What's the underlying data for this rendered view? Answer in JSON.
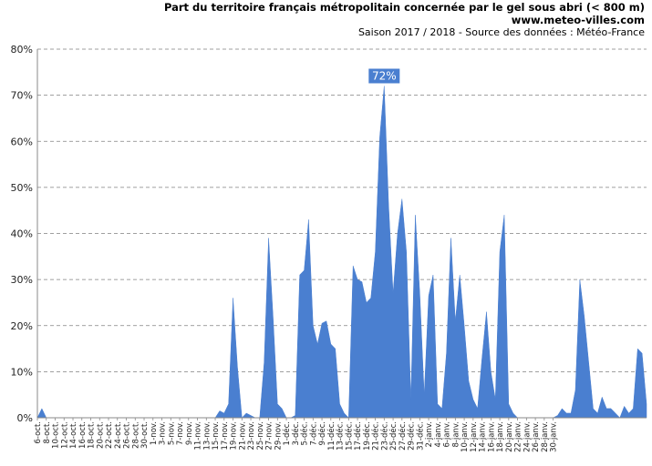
{
  "header": {
    "title": "Part du territoire français métropolitain concernée par le gel sous abri (< 800 m)",
    "site": "www.meteo-villes.com",
    "subtitle": "Saison 2017 / 2018 - Source des données : Météo-France"
  },
  "colors": {
    "area": "#4a7fd0",
    "grid": "#808080",
    "axis": "#888888",
    "label_bg": "#4a7fd0"
  },
  "chart_data": {
    "type": "area",
    "title": "Part du territoire français métropolitain concernée par le gel sous abri (< 800 m)",
    "subtitle": "Saison 2017 / 2018 - Source des données : Météo-France",
    "xlabel": "",
    "ylabel": "",
    "ylim": [
      0,
      80
    ],
    "y_unit": "%",
    "yticks": [
      "0%",
      "10%",
      "20%",
      "30%",
      "40%",
      "50%",
      "60%",
      "70%",
      "80%"
    ],
    "grid": true,
    "max_label": "72%",
    "x_tick_labels": [
      "6-oct.",
      "8-oct.",
      "10-oct.",
      "12-oct.",
      "14-oct.",
      "16-oct.",
      "18-oct.",
      "20-oct.",
      "22-oct.",
      "24-oct.",
      "26-oct.",
      "28-oct.",
      "30-oct.",
      "1-nov.",
      "3-nov.",
      "5-nov.",
      "7-nov.",
      "9-nov.",
      "11-nov.",
      "13-nov.",
      "15-nov.",
      "17-nov.",
      "19-nov.",
      "21-nov.",
      "23-nov.",
      "25-nov.",
      "27-nov.",
      "29-nov.",
      "1-déc.",
      "3-déc.",
      "5-déc.",
      "7-déc.",
      "9-déc.",
      "11-déc.",
      "13-déc.",
      "15-déc.",
      "17-déc.",
      "19-déc.",
      "21-déc.",
      "23-déc.",
      "25-déc.",
      "27-déc.",
      "29-déc.",
      "31-déc.",
      "2-janv.",
      "4-janv.",
      "6-janv.",
      "8-janv.",
      "10-janv.",
      "12-janv.",
      "14-janv.",
      "16-janv.",
      "18-janv.",
      "20-janv.",
      "22-janv.",
      "24-janv.",
      "26-janv.",
      "28-janv.",
      "30-janv."
    ],
    "start_date": "2017-10-06",
    "values": [
      0,
      2,
      0,
      0,
      0,
      0,
      0,
      0,
      0,
      0,
      0,
      0,
      0,
      0,
      0,
      0,
      0,
      0,
      0,
      0,
      0,
      0,
      0,
      0,
      0,
      0,
      0,
      0,
      0,
      0,
      0,
      0,
      0,
      0,
      0,
      0,
      0,
      0,
      0,
      0,
      0,
      1.5,
      1,
      3,
      26,
      11,
      0,
      1,
      0.5,
      0,
      0,
      12,
      39,
      22,
      3,
      2,
      0,
      0,
      0.5,
      31,
      32,
      43,
      20,
      16,
      20.5,
      21,
      16,
      15,
      3,
      1,
      0,
      33,
      30,
      29.5,
      25,
      26,
      36,
      61,
      72,
      46,
      27,
      40,
      47.5,
      36,
      4,
      44,
      27,
      5,
      26.5,
      31,
      3,
      2,
      14,
      39,
      21,
      31,
      20,
      8,
      4,
      2,
      13,
      23,
      10,
      4,
      36,
      44,
      3,
      1,
      0,
      0,
      0,
      0,
      0,
      0,
      0,
      0,
      0,
      0.5,
      2,
      1,
      1,
      6,
      30,
      22,
      12,
      2,
      1,
      4.5,
      2,
      2,
      1,
      0,
      2.5,
      1,
      2,
      15,
      14,
      3
    ]
  }
}
